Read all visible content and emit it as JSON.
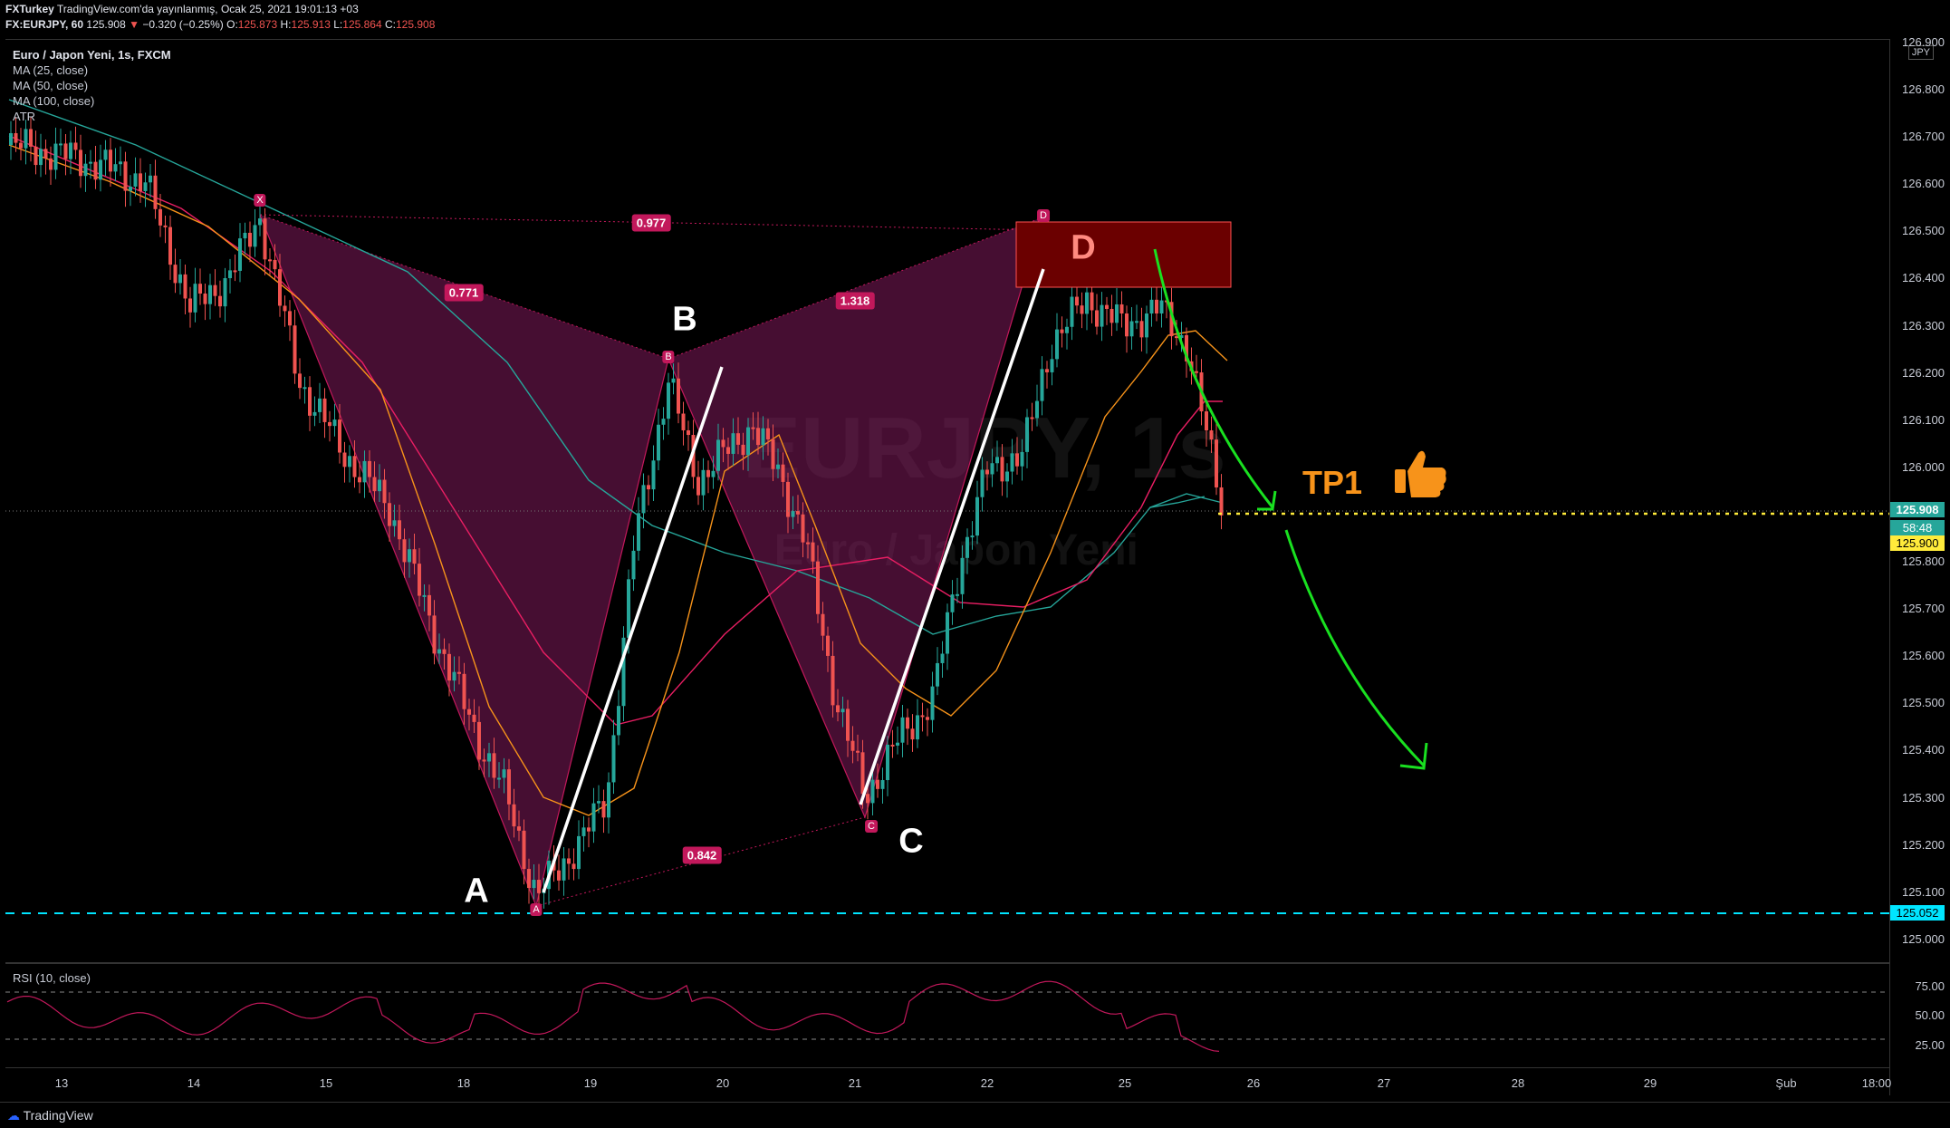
{
  "header": {
    "publisher": "FXTurkey",
    "published_text": "TradingView.com'da yayınlanmış, Ocak 25, 2021 19:01:13 +03",
    "symbol": "FX:EURJPY, 60",
    "last": "125.908",
    "change_arrow": "▼",
    "change": "−0.320 (−0.25%)",
    "o_label": "O:",
    "o": "125.873",
    "h_label": "H:",
    "h": "125.913",
    "l_label": "L:",
    "l": "125.864",
    "c_label": "C:",
    "c": "125.908"
  },
  "legend": {
    "title": "Euro / Japon Yeni, 1s, FXCM",
    "ma25": "MA (25, close)",
    "ma50": "MA (50, close)",
    "ma100": "MA (100, close)",
    "atr": "ATR"
  },
  "watermark": {
    "symbol": "EURJPY, 1s",
    "name": "Euro / Japon Yeni"
  },
  "price_axis": {
    "currency": "JPY",
    "ticks": [
      "126.900",
      "126.800",
      "126.700",
      "126.600",
      "126.500",
      "126.400",
      "126.300",
      "126.200",
      "126.100",
      "126.000",
      "125.800",
      "125.700",
      "125.600",
      "125.500",
      "125.400",
      "125.300",
      "125.200",
      "125.100",
      "125.000"
    ],
    "tag_last": "125.908",
    "tag_countdown": "58:48",
    "tag_tp": "125.900",
    "tag_support": "125.052"
  },
  "rsi": {
    "label": "RSI (10, close)",
    "ticks": [
      "75.00",
      "50.00",
      "25.00"
    ]
  },
  "time_axis": {
    "labels": [
      "13",
      "14",
      "15",
      "18",
      "19",
      "20",
      "21",
      "22",
      "25",
      "26",
      "27",
      "28",
      "29",
      "Şub",
      "18:00"
    ]
  },
  "pattern": {
    "points": {
      "x": "X",
      "a": "A",
      "b": "B",
      "c": "C",
      "d": "D"
    },
    "big_labels": {
      "a": "A",
      "b": "B",
      "c": "C",
      "d": "D"
    },
    "ratios": {
      "xb": "0.771",
      "xd": "0.977",
      "bd": "1.318",
      "ac": "0.842"
    }
  },
  "annotations": {
    "tp1": "TP1",
    "thumb_icon": "thumbs-up-icon"
  },
  "colors": {
    "background": "#000000",
    "pattern_fill": "#9c1f6f",
    "label_pink": "#c2185b",
    "ma25": "#f7931a",
    "ma50": "#e91e63",
    "ma100": "#26a69a",
    "tp1": "#f7931a",
    "arrow_green": "#19e020",
    "support_cyan": "#00e5ff",
    "tp_yellow": "#ffeb3b",
    "d_zone": "#6b0000"
  },
  "footer": {
    "brand": "TradingView"
  }
}
